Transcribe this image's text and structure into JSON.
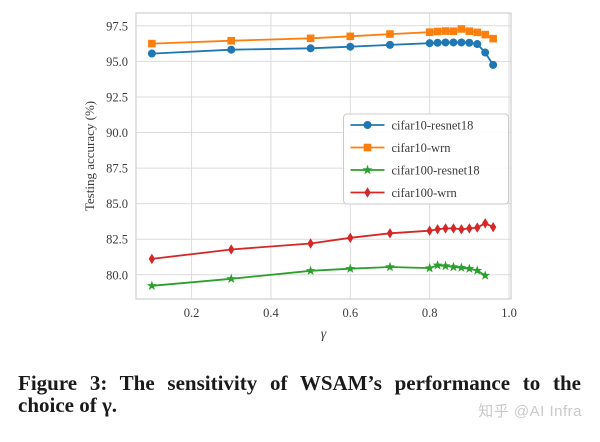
{
  "figure": {
    "caption": {
      "line1": "Figure 3: The sensitivity of WSAM’s performance to the",
      "line2": "choice of γ."
    },
    "watermark": "知乎 @AI Infra"
  },
  "chart_data": {
    "type": "line",
    "title": "",
    "xlabel": "γ",
    "ylabel": "Testing accuracy (%)",
    "xlim": [
      0.06,
      1.005
    ],
    "ylim": [
      78.3,
      98.4
    ],
    "xticks": [
      0.2,
      0.4,
      0.6,
      0.8,
      1.0
    ],
    "yticks": [
      80.0,
      82.5,
      85.0,
      87.5,
      90.0,
      92.5,
      95.0,
      97.5
    ],
    "grid": true,
    "legend_position": "center-right",
    "series": [
      {
        "name": "cifar10-resnet18",
        "color": "#1f77b4",
        "marker": "circle",
        "x": [
          0.1,
          0.3,
          0.5,
          0.6,
          0.7,
          0.8,
          0.82,
          0.84,
          0.86,
          0.88,
          0.9,
          0.92,
          0.94,
          0.96
        ],
        "y": [
          95.55,
          95.82,
          95.92,
          96.03,
          96.16,
          96.28,
          96.31,
          96.33,
          96.33,
          96.33,
          96.31,
          96.22,
          95.62,
          94.75
        ]
      },
      {
        "name": "cifar10-wrn",
        "color": "#ff7f0e",
        "marker": "square",
        "x": [
          0.1,
          0.3,
          0.5,
          0.6,
          0.7,
          0.8,
          0.82,
          0.84,
          0.86,
          0.88,
          0.9,
          0.92,
          0.94,
          0.96
        ],
        "y": [
          96.25,
          96.45,
          96.62,
          96.76,
          96.92,
          97.05,
          97.1,
          97.13,
          97.12,
          97.28,
          97.12,
          97.04,
          96.88,
          96.6
        ]
      },
      {
        "name": "cifar100-resnet18",
        "color": "#2ca02c",
        "marker": "star",
        "x": [
          0.1,
          0.3,
          0.5,
          0.6,
          0.7,
          0.8,
          0.82,
          0.84,
          0.86,
          0.88,
          0.9,
          0.92,
          0.94
        ],
        "y": [
          79.23,
          79.72,
          80.28,
          80.43,
          80.55,
          80.47,
          80.67,
          80.62,
          80.55,
          80.5,
          80.43,
          80.3,
          79.95
        ]
      },
      {
        "name": "cifar100-wrn",
        "color": "#d62728",
        "marker": "thin-diamond",
        "x": [
          0.1,
          0.3,
          0.5,
          0.6,
          0.7,
          0.8,
          0.82,
          0.84,
          0.86,
          0.88,
          0.9,
          0.92,
          0.94,
          0.96
        ],
        "y": [
          81.12,
          81.78,
          82.2,
          82.6,
          82.92,
          83.1,
          83.2,
          83.26,
          83.26,
          83.2,
          83.26,
          83.32,
          83.62,
          83.35
        ]
      }
    ],
    "style": {
      "grid_color": "#dcdcdc",
      "spine_color": "#cfcfcf",
      "tick_label_color": "#3b3b3b",
      "legend_border_color": "#cccccc",
      "legend_text_color": "#3a3a3a"
    }
  }
}
